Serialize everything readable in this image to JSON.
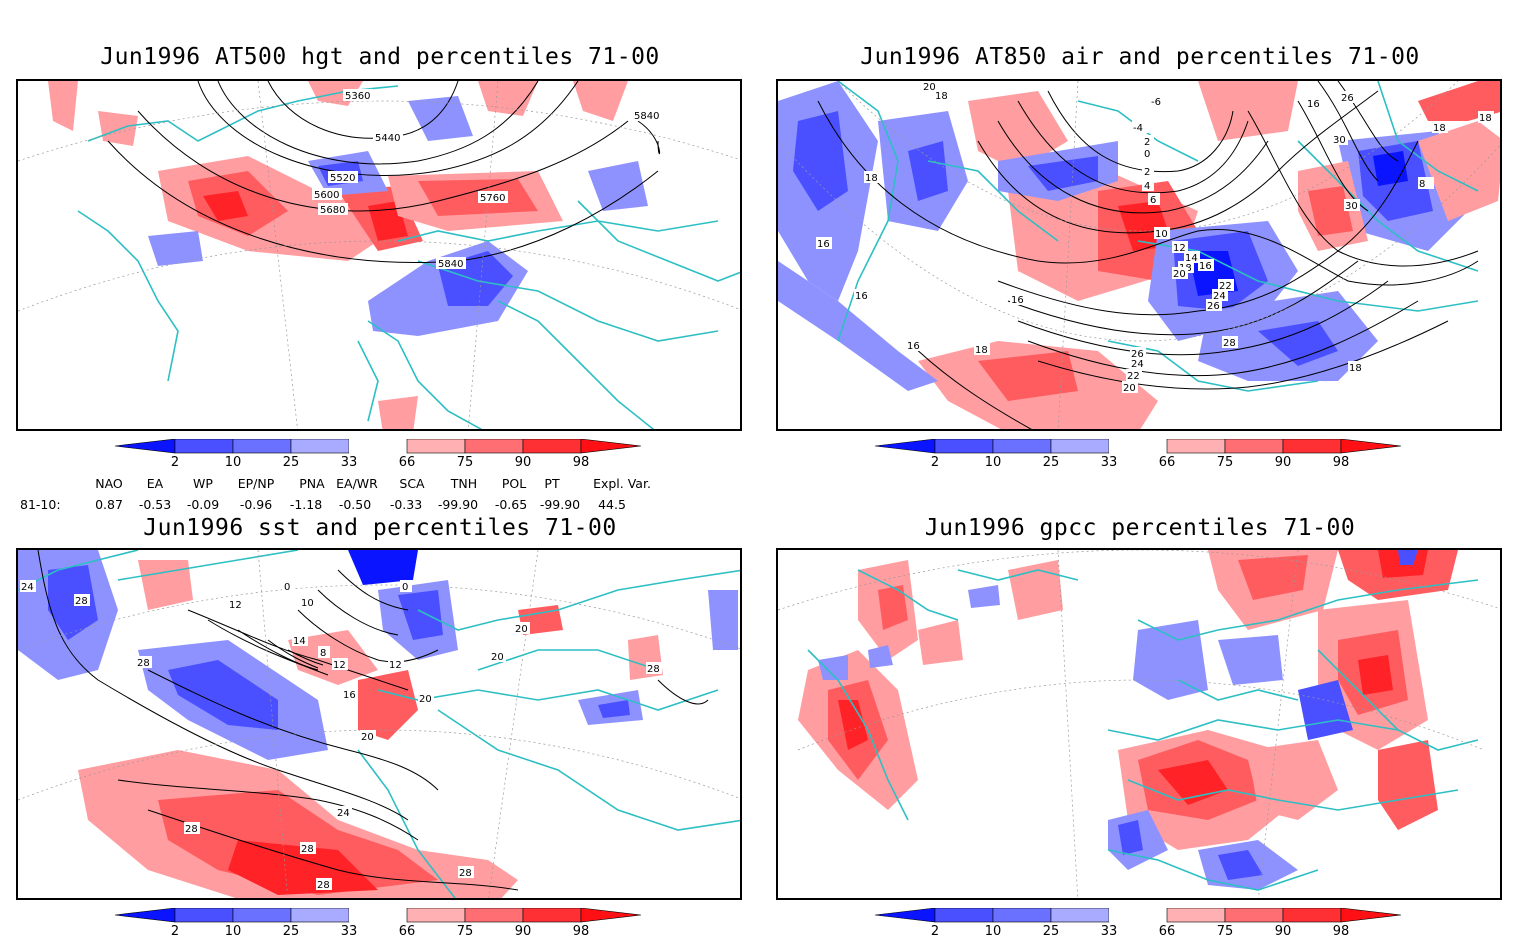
{
  "colors": {
    "blue_dark": "#0a14ff",
    "blue_mid": "#4a50ff",
    "blue_light": "#8e92ff",
    "red_light": "#ff9da0",
    "red_mid": "#ff5c60",
    "red_dark": "#ff2226",
    "coast": "#2dbfc4",
    "contour": "#000000"
  },
  "colorbar": {
    "labels": [
      "2",
      "10",
      "25",
      "33",
      "66",
      "75",
      "90",
      "98"
    ]
  },
  "panels": [
    {
      "title": "Jun1996 AT500 hgt and percentiles 71-00",
      "contour_labels": [
        "5360",
        "5440",
        "5520",
        "5600",
        "5680",
        "5760",
        "5840",
        "5840"
      ]
    },
    {
      "title": "Jun1996 AT850 air and percentiles 71-00",
      "contour_labels": [
        "20",
        "18",
        "-6",
        "-4",
        "2",
        "0",
        "2",
        "4",
        "6",
        "8",
        "10",
        "12",
        "14",
        "16",
        "18",
        "20",
        "22",
        "24",
        "26",
        "28",
        "26",
        "24",
        "22",
        "20",
        "18",
        "16",
        "18",
        "16",
        "16",
        "16",
        "18",
        "18",
        "30",
        "30",
        "26",
        "16",
        "18"
      ]
    },
    {
      "title": "Jun1996 sst and percentiles 71-00",
      "contour_labels": [
        "24",
        "28",
        "28",
        "12",
        "0",
        "0",
        "10",
        "14",
        "8",
        "12",
        "12",
        "16",
        "20",
        "20",
        "20",
        "20",
        "24",
        "28",
        "28",
        "28",
        "28",
        "28"
      ]
    },
    {
      "title": "Jun1996 gpcc percentiles 71-00",
      "contour_labels": []
    }
  ],
  "indices": {
    "headers": [
      "NAO",
      "EA",
      "WP",
      "EP/NP",
      "PNA",
      "EA/WR",
      "SCA",
      "TNH",
      "POL",
      "PT",
      "Expl. Var."
    ],
    "row_label": "81-10:",
    "values": [
      "0.87",
      "-0.53",
      "-0.09",
      "-0.96",
      "-1.18",
      "-0.50",
      "-0.33",
      "-99.90",
      "-0.65",
      "-99.90",
      "44.5"
    ]
  }
}
